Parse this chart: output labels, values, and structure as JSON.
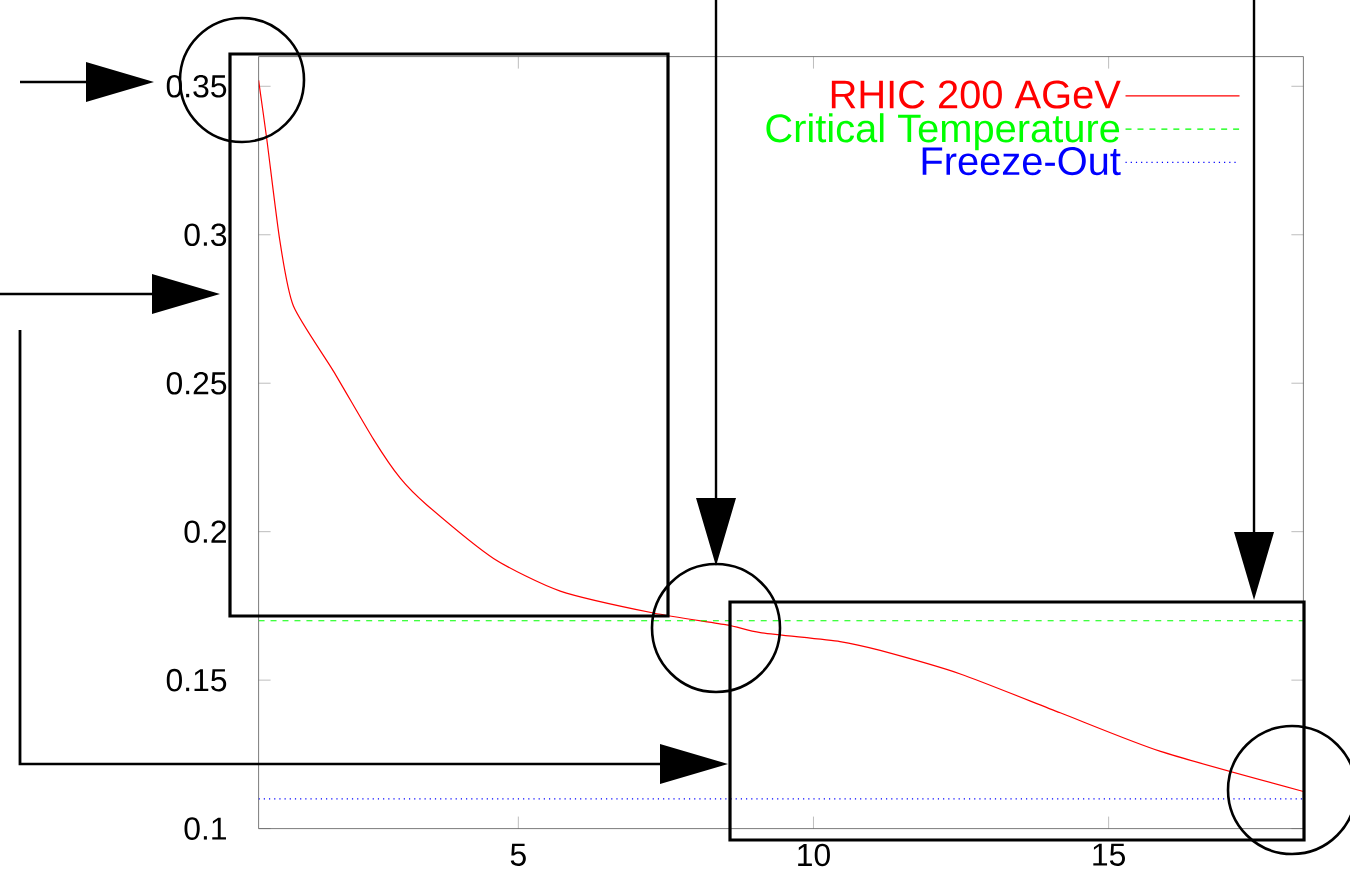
{
  "chart_data": {
    "type": "line",
    "xlim": [
      0.6,
      18.3
    ],
    "ylim": [
      0.1,
      0.36
    ],
    "xticks": [
      5,
      10,
      15
    ],
    "yticks": [
      0.1,
      0.15,
      0.2,
      0.25,
      0.3,
      0.35
    ],
    "legend": "top right",
    "grid": false,
    "series": [
      {
        "name": "RHIC 200 AGeV",
        "color": "#ff0000",
        "line_style": "solid",
        "x": [
          0.6,
          0.74,
          0.96,
          1.19,
          1.87,
          2.55,
          3.0,
          3.45,
          4.58,
          5.71,
          7.29,
          8.53,
          9.1,
          10.45,
          11.13,
          12.5,
          14.18,
          15.88,
          18.3
        ],
        "values": [
          0.352,
          0.332,
          0.298,
          0.276,
          0.254,
          0.231,
          0.218,
          0.209,
          0.191,
          0.18,
          0.1726,
          0.1686,
          0.166,
          0.163,
          0.16,
          0.152,
          0.139,
          0.126,
          0.1125
        ]
      },
      {
        "name": "Critical Temperature",
        "color": "#00ff00",
        "line_style": "dashed",
        "x": [
          0.6,
          18.3
        ],
        "values": [
          0.17,
          0.17
        ]
      },
      {
        "name": "Freeze-Out",
        "color": "#0000ff",
        "line_style": "dotted",
        "x": [
          0.6,
          18.3
        ],
        "values": [
          0.11,
          0.11
        ]
      }
    ]
  }
}
